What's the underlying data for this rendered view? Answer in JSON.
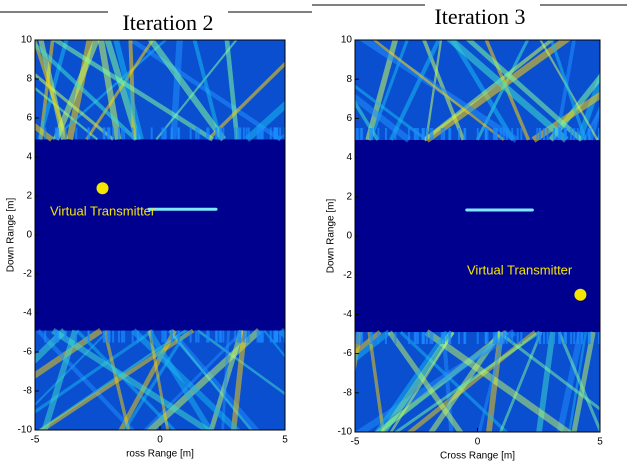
{
  "chart_data": [
    {
      "type": "image",
      "title": "Iteration 2",
      "xlabel": "ross Range [m]",
      "ylabel": "Down Range [m]",
      "xlim": [
        -5,
        5
      ],
      "ylim": [
        -10,
        10
      ],
      "xticks": [
        -5,
        0,
        5
      ],
      "yticks": [
        -10,
        -8,
        -6,
        -4,
        -2,
        0,
        2,
        4,
        6,
        8,
        10
      ],
      "annotation": "Virtual Transmitter",
      "points": {
        "x": [
          -2.3
        ],
        "y": [
          2.4
        ],
        "color": "#f5e600"
      }
    },
    {
      "type": "image",
      "title": "Iteration 3",
      "xlabel": "Cross Range [m]",
      "ylabel": "Down Range [m]",
      "xlim": [
        -5,
        5
      ],
      "ylim": [
        -10,
        10
      ],
      "xticks": [
        -5,
        0,
        5
      ],
      "yticks": [
        -10,
        -8,
        -6,
        -4,
        -2,
        0,
        2,
        4,
        6,
        8,
        10
      ],
      "annotation": "Virtual Transmitter",
      "points": {
        "x": [
          4.2
        ],
        "y": [
          -3
        ],
        "color": "#f5e600"
      }
    }
  ]
}
